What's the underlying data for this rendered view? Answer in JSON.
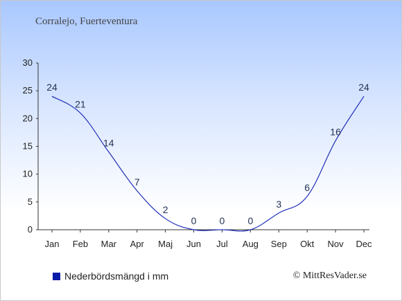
{
  "page": {
    "title": "Corralejo, Fuerteventura",
    "legend_label": "Nederbördsmängd i mm",
    "credit": "© MittResVader.se"
  },
  "colors": {
    "line": "#1f2fb8",
    "legend": "#0a1aa8"
  },
  "chart_data": {
    "type": "line",
    "categories": [
      "Jan",
      "Feb",
      "Mar",
      "Apr",
      "Maj",
      "Jun",
      "Jul",
      "Aug",
      "Sep",
      "Okt",
      "Nov",
      "Dec"
    ],
    "series": [
      {
        "name": "Nederbördsmängd i mm",
        "values": [
          24,
          21,
          14,
          7,
          2,
          0,
          0,
          0,
          3,
          6,
          16,
          24
        ]
      }
    ],
    "yticks": [
      0,
      5,
      10,
      15,
      20,
      25,
      30
    ],
    "ylim": [
      0,
      30
    ],
    "grid": false,
    "legend_position": "bottom-left"
  }
}
